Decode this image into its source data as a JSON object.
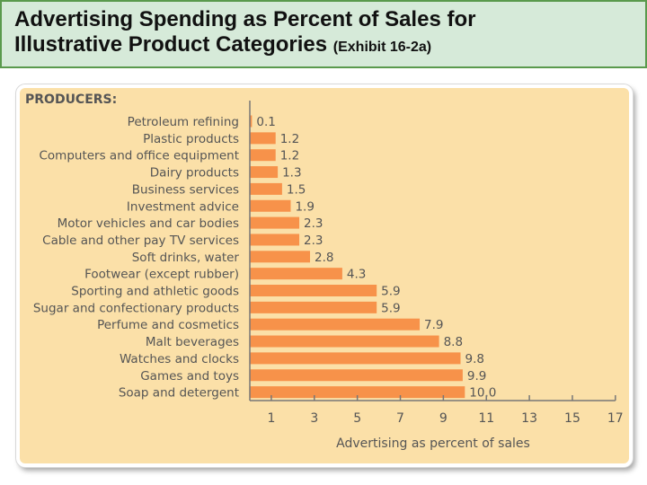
{
  "header": {
    "title_line1": "Advertising Spending as Percent of Sales for",
    "title_line2": "Illustrative Product Categories",
    "exhibit": "(Exhibit 16-2a)"
  },
  "chart_data": {
    "type": "bar",
    "orientation": "horizontal",
    "section_label": "PRODUCERS:",
    "categories": [
      "Petroleum refining",
      "Plastic products",
      "Computers and office equipment",
      "Dairy products",
      "Business services",
      "Investment advice",
      "Motor vehicles and car bodies",
      "Cable and other pay TV services",
      "Soft drinks, water",
      "Footwear (except rubber)",
      "Sporting and athletic goods",
      "Sugar and confectionary products",
      "Perfume and cosmetics",
      "Malt beverages",
      "Watches and clocks",
      "Games and toys",
      "Soap and detergent"
    ],
    "values": [
      0.1,
      1.2,
      1.2,
      1.3,
      1.5,
      1.9,
      2.3,
      2.3,
      2.8,
      4.3,
      5.9,
      5.9,
      7.9,
      8.8,
      9.8,
      9.9,
      10.0
    ],
    "value_labels": [
      "0.1",
      "1.2",
      "1.2",
      "1.3",
      "1.5",
      "1.9",
      "2.3",
      "2.3",
      "2.8",
      "4.3",
      "5.9",
      "5.9",
      "7.9",
      "8.8",
      "9.8",
      "9.9",
      "10.0"
    ],
    "xlabel": "Advertising as percent of sales",
    "xticks": [
      1,
      3,
      5,
      7,
      9,
      11,
      13,
      15,
      17
    ],
    "xlim": [
      0,
      17
    ],
    "bar_color": "#f7924a",
    "text_color": "#555555"
  }
}
